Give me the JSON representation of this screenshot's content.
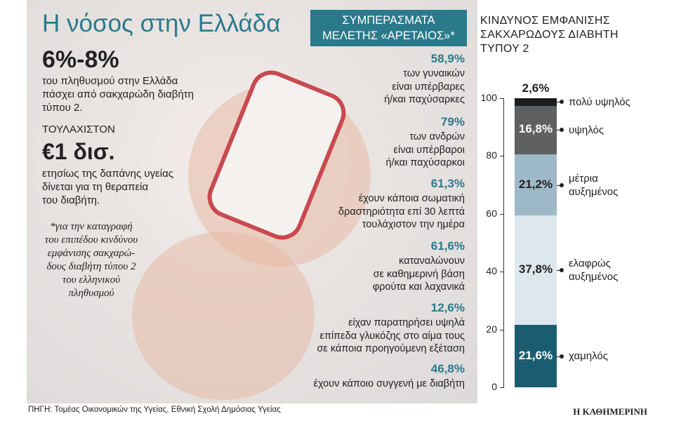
{
  "title": "Η νόσος στην Ελλάδα",
  "left": {
    "stat": "6%-8%",
    "stat_lines": [
      "του πληθυσμού στην Ελλάδα",
      "πάσχει από σακχαρώδη διαβήτη",
      "τύπου 2."
    ],
    "least": "ΤΟΥΛΑΧΙΣΤΟΝ",
    "cost": "€1 δισ.",
    "cost_lines": [
      "ετησίως της δαπάνης υγείας",
      "δίνεται για τη θεραπεία",
      "του διαβήτη."
    ],
    "note_lines": [
      "*για την καταγραφή",
      "του επιπέδου κινδύνου",
      "εμφάνισης σακχαρώ-",
      "δους διαβήτη τύπου 2",
      "του ελληνικού",
      "πληθυσμού"
    ]
  },
  "study": {
    "header": "ΣΥΜΠΕΡΑΣΜΑΤΑ ΜΕΛΕΤΗΣ «ΑΡΕΤΑΙΟΣ»*",
    "findings": [
      {
        "number": "58,9%",
        "lines": [
          "των γυναικών",
          "είναι υπέρβαρες",
          "ή/και παχύσαρκες"
        ]
      },
      {
        "number": "79%",
        "lines": [
          "των ανδρών",
          "είναι υπέρβαροι",
          "ή/και παχύσαρκοι"
        ]
      },
      {
        "number": "61,3%",
        "lines": [
          "έχουν κάποια σωματική",
          "δραστηριότητα επί 30 λεπτά",
          "τουλάχιστον την ημέρα"
        ]
      },
      {
        "number": "61,6%",
        "lines": [
          "καταναλώνουν",
          "σε καθημερινή βάση",
          "φρούτα και λαχανικά"
        ]
      },
      {
        "number": "12,6%",
        "lines": [
          "είχαν παρατηρήσει υψηλά",
          "επίπεδα γλυκόζης στο αίμα τους",
          "σε κάποια προηγούμενη εξέταση"
        ]
      },
      {
        "number": "46,8%",
        "lines": [
          "έχουν κάποιο συγγενή με διαβήτη"
        ]
      }
    ]
  },
  "chart_data": {
    "type": "stacked-bar",
    "title": "ΚΙΝΔΥΝΟΣ ΕΜΦΑΝΙΣΗΣ ΣΑΚΧΑΡΩΔΟΥΣ ΔΙΑΒΗΤΗ ΤΥΠΟΥ 2",
    "ylim": [
      0,
      100
    ],
    "yticks": [
      0,
      20,
      40,
      60,
      80,
      100
    ],
    "series": [
      {
        "name": "χαμηλός",
        "color": "#1b5d70",
        "values": [
          21.6
        ],
        "value_labels": [
          "21,6%"
        ]
      },
      {
        "name": "ελαφρώς αυξημένος",
        "color": "#dde7ee",
        "values": [
          37.8
        ],
        "value_labels": [
          "37,8%"
        ]
      },
      {
        "name": "μέτρια αυξημένος",
        "color": "#9db8c6",
        "values": [
          21.2
        ],
        "value_labels": [
          "21,2%"
        ]
      },
      {
        "name": "υψηλός",
        "color": "#5e6062",
        "values": [
          16.8
        ],
        "value_labels": [
          "16,8%"
        ]
      },
      {
        "name": "πολύ υψηλός",
        "color": "#1c1c1c",
        "values": [
          2.6
        ],
        "value_labels": [
          "2,6%"
        ]
      }
    ]
  },
  "footer": {
    "source": "ΠΗΓΗ: Τομέας Οικονομικών της Υγείας, Εθνική Σχολή Δημόσιας Υγείας",
    "brand": "Η ΚΑΘΗΜΕΡΙΝΗ"
  }
}
